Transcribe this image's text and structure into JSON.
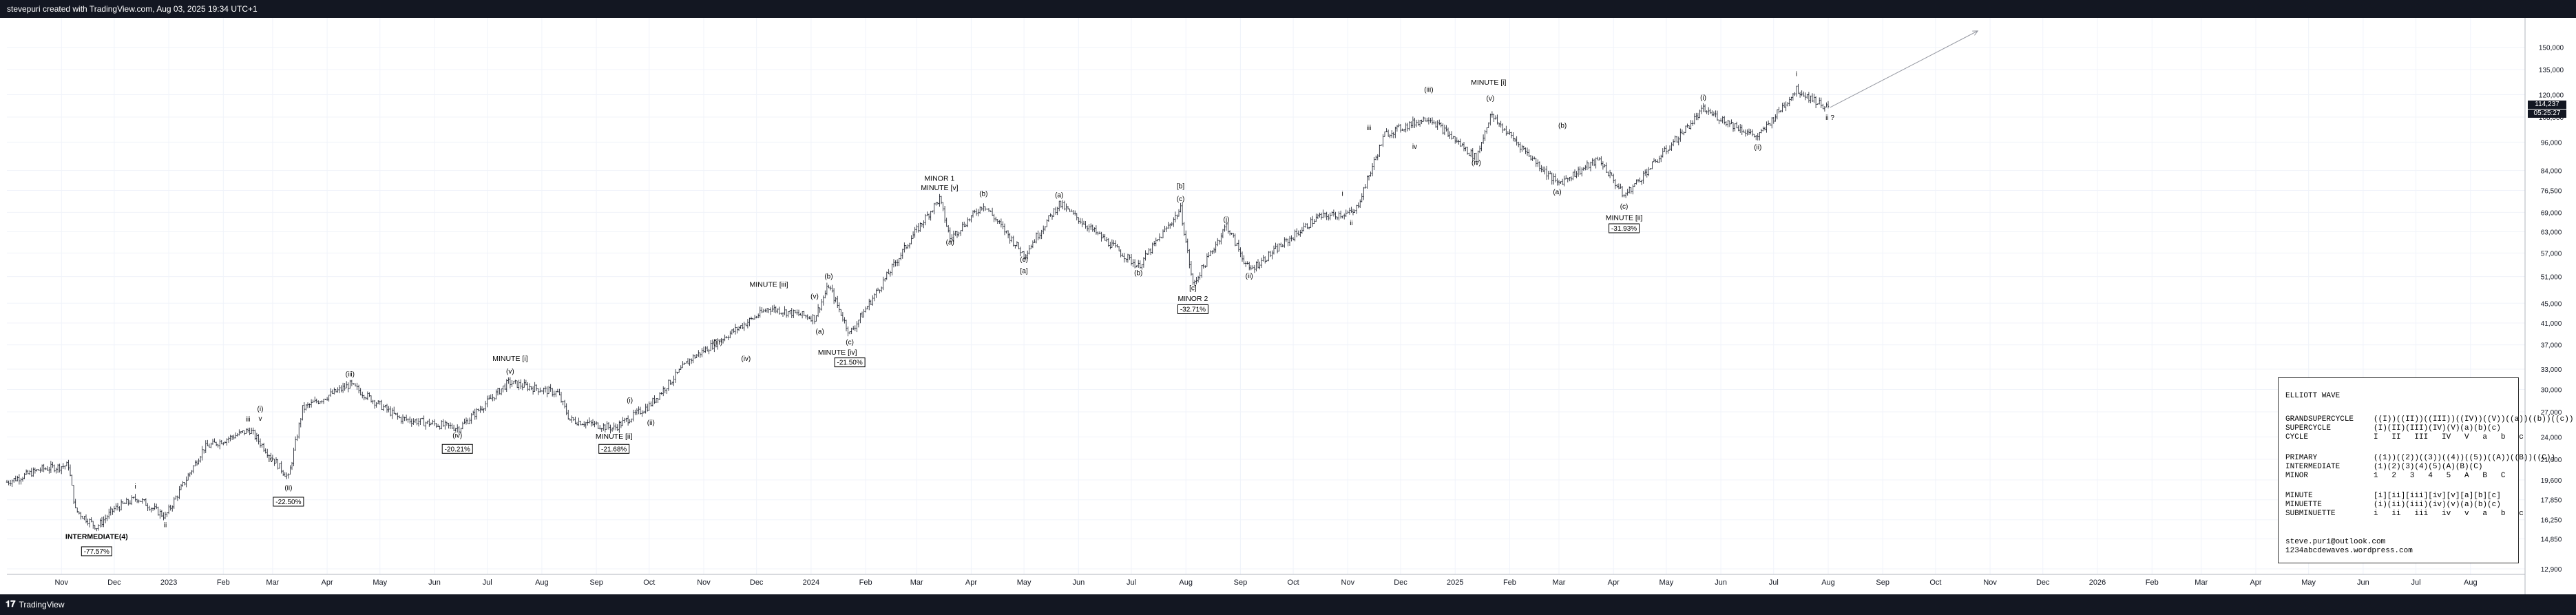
{
  "header": {
    "title": "stevepuri created with TradingView.com, Aug 03, 2025 19:34 UTC+1"
  },
  "footer": {
    "brand": "TradingView",
    "logo_icon": "tradingview-logo-icon"
  },
  "colors": {
    "candle": "#131722",
    "bar_bg": "#131722",
    "axis_text": "#131722",
    "grid": "#e0e3eb",
    "projection": "#9598a1"
  },
  "chart_data": {
    "type": "candlestick",
    "title": "",
    "y_scale": "log",
    "ylim": [
      12900,
      170000
    ],
    "xlim": [
      "2022-10-01",
      "2026-09-01"
    ],
    "y_ticks": [
      12900,
      14850,
      16250,
      17850,
      19600,
      21600,
      24000,
      27000,
      30000,
      33000,
      37000,
      41000,
      45000,
      51000,
      57000,
      63000,
      69000,
      76500,
      84000,
      96000,
      108000,
      120000,
      135000,
      150000
    ],
    "y_tick_labels": [
      "12,900",
      "14,850",
      "16,250",
      "17,850",
      "19,600",
      "21,600",
      "24,000",
      "27,000",
      "30,000",
      "33,000",
      "37,000",
      "41,000",
      "45,000",
      "51,000",
      "57,000",
      "63,000",
      "69,000",
      "76,500",
      "84,000",
      "96,000",
      "108,000",
      "120,000",
      "135,000",
      "150,000"
    ],
    "x_ticks": [
      {
        "date": "2022-11-01",
        "label": "Nov"
      },
      {
        "date": "2022-12-01",
        "label": "Dec"
      },
      {
        "date": "2023-01-01",
        "label": "2023"
      },
      {
        "date": "2023-02-01",
        "label": "Feb"
      },
      {
        "date": "2023-03-01",
        "label": "Mar"
      },
      {
        "date": "2023-04-01",
        "label": "Apr"
      },
      {
        "date": "2023-05-01",
        "label": "May"
      },
      {
        "date": "2023-06-01",
        "label": "Jun"
      },
      {
        "date": "2023-07-01",
        "label": "Jul"
      },
      {
        "date": "2023-08-01",
        "label": "Aug"
      },
      {
        "date": "2023-09-01",
        "label": "Sep"
      },
      {
        "date": "2023-10-01",
        "label": "Oct"
      },
      {
        "date": "2023-11-01",
        "label": "Nov"
      },
      {
        "date": "2023-12-01",
        "label": "Dec"
      },
      {
        "date": "2024-01-01",
        "label": "2024"
      },
      {
        "date": "2024-02-01",
        "label": "Feb"
      },
      {
        "date": "2024-03-01",
        "label": "Mar"
      },
      {
        "date": "2024-04-01",
        "label": "Apr"
      },
      {
        "date": "2024-05-01",
        "label": "May"
      },
      {
        "date": "2024-06-01",
        "label": "Jun"
      },
      {
        "date": "2024-07-01",
        "label": "Jul"
      },
      {
        "date": "2024-08-01",
        "label": "Aug"
      },
      {
        "date": "2024-09-01",
        "label": "Sep"
      },
      {
        "date": "2024-10-01",
        "label": "Oct"
      },
      {
        "date": "2024-11-01",
        "label": "Nov"
      },
      {
        "date": "2024-12-01",
        "label": "Dec"
      },
      {
        "date": "2025-01-01",
        "label": "2025"
      },
      {
        "date": "2025-02-01",
        "label": "Feb"
      },
      {
        "date": "2025-03-01",
        "label": "Mar"
      },
      {
        "date": "2025-04-01",
        "label": "Apr"
      },
      {
        "date": "2025-05-01",
        "label": "May"
      },
      {
        "date": "2025-06-01",
        "label": "Jun"
      },
      {
        "date": "2025-07-01",
        "label": "Jul"
      },
      {
        "date": "2025-08-01",
        "label": "Aug"
      },
      {
        "date": "2025-09-01",
        "label": "Sep"
      },
      {
        "date": "2025-10-01",
        "label": "Oct"
      },
      {
        "date": "2025-11-01",
        "label": "Nov"
      },
      {
        "date": "2025-12-01",
        "label": "Dec"
      },
      {
        "date": "2026-01-01",
        "label": "2026"
      },
      {
        "date": "2026-02-01",
        "label": "Feb"
      },
      {
        "date": "2026-03-01",
        "label": "Mar"
      },
      {
        "date": "2026-04-01",
        "label": "Apr"
      },
      {
        "date": "2026-05-01",
        "label": "May"
      },
      {
        "date": "2026-06-01",
        "label": "Jun"
      },
      {
        "date": "2026-07-01",
        "label": "Jul"
      },
      {
        "date": "2026-08-01",
        "label": "Aug"
      }
    ],
    "price_path": [
      [
        "2022-10-01",
        19400
      ],
      [
        "2022-10-20",
        20600
      ],
      [
        "2022-11-05",
        21000
      ],
      [
        "2022-11-09",
        17000
      ],
      [
        "2022-11-21",
        15700
      ],
      [
        "2022-12-01",
        17100
      ],
      [
        "2022-12-14",
        18000
      ],
      [
        "2022-12-30",
        16500
      ],
      [
        "2023-01-21",
        22800
      ],
      [
        "2023-02-16",
        24800
      ],
      [
        "2023-03-10",
        19800
      ],
      [
        "2023-03-18",
        27400
      ],
      [
        "2023-04-14",
        30700
      ],
      [
        "2023-05-12",
        26200
      ],
      [
        "2023-06-15",
        25000
      ],
      [
        "2023-07-13",
        31000
      ],
      [
        "2023-08-10",
        29500
      ],
      [
        "2023-08-17",
        26000
      ],
      [
        "2023-09-11",
        25000
      ],
      [
        "2023-10-01",
        27800
      ],
      [
        "2023-10-24",
        34500
      ],
      [
        "2023-12-08",
        44000
      ],
      [
        "2024-01-03",
        42000
      ],
      [
        "2024-01-11",
        48900
      ],
      [
        "2024-01-23",
        39000
      ],
      [
        "2024-02-28",
        62000
      ],
      [
        "2024-03-14",
        73600
      ],
      [
        "2024-03-20",
        61000
      ],
      [
        "2024-04-08",
        71700
      ],
      [
        "2024-05-01",
        56500
      ],
      [
        "2024-05-21",
        71900
      ],
      [
        "2024-07-05",
        53500
      ],
      [
        "2024-07-29",
        70000
      ],
      [
        "2024-08-05",
        49000
      ],
      [
        "2024-08-24",
        65000
      ],
      [
        "2024-09-06",
        52500
      ],
      [
        "2024-10-15",
        67500
      ],
      [
        "2024-11-05",
        69000
      ],
      [
        "2024-11-22",
        99600
      ],
      [
        "2024-12-17",
        108000
      ],
      [
        "2025-01-13",
        89000
      ],
      [
        "2025-01-21",
        109000
      ],
      [
        "2025-02-28",
        79000
      ],
      [
        "2025-03-24",
        88500
      ],
      [
        "2025-04-07",
        74500
      ],
      [
        "2025-05-22",
        111900
      ],
      [
        "2025-06-22",
        98200
      ],
      [
        "2025-07-14",
        123000
      ],
      [
        "2025-08-02",
        112000
      ]
    ],
    "last_price": "114,237",
    "countdown": "05:25:27",
    "projection": {
      "from": [
        "2025-08-02",
        113000
      ],
      "to": [
        "2025-10-25",
        162000
      ]
    },
    "labels": [
      {
        "text": "i",
        "date": "2022-12-13",
        "price": 18800
      },
      {
        "text": "ii",
        "date": "2022-12-30",
        "price": 15700
      },
      {
        "text": "iii",
        "date": "2023-02-15",
        "price": 25800
      },
      {
        "text": "iv",
        "date": "2023-02-28",
        "price": 21300
      },
      {
        "text": "(i)",
        "date": "2023-02-22",
        "price": 27100
      },
      {
        "text": "v",
        "date": "2023-02-22",
        "price": 25900
      },
      {
        "text": "(ii)",
        "date": "2023-03-10",
        "price": 18700
      },
      {
        "text": "(iii)",
        "date": "2023-04-14",
        "price": 31900
      },
      {
        "text": "(iv)",
        "date": "2023-06-14",
        "price": 23900
      },
      {
        "text": "MINUTE [i]",
        "date": "2023-07-14",
        "price": 34300
      },
      {
        "text": "(v)",
        "date": "2023-07-14",
        "price": 32300
      },
      {
        "text": "(i)",
        "date": "2023-09-20",
        "price": 28200
      },
      {
        "text": "(ii)",
        "date": "2023-10-02",
        "price": 25400
      },
      {
        "text": "MINUTE [ii]",
        "date": "2023-09-11",
        "price": 23800
      },
      {
        "text": "(iii)",
        "date": "2023-11-09",
        "price": 37000
      },
      {
        "text": "(iv)",
        "date": "2023-11-25",
        "price": 34300
      },
      {
        "text": "MINUTE [iii]",
        "date": "2023-12-08",
        "price": 48600
      },
      {
        "text": "(v)",
        "date": "2024-01-03",
        "price": 46000
      },
      {
        "text": "(a)",
        "date": "2024-01-06",
        "price": 39000
      },
      {
        "text": "(b)",
        "date": "2024-01-11",
        "price": 50500
      },
      {
        "text": "(c)",
        "date": "2024-01-23",
        "price": 37100
      },
      {
        "text": "MINUTE [iv]",
        "date": "2024-01-16",
        "price": 35300
      },
      {
        "text": "MINOR 1",
        "date": "2024-03-14",
        "price": 80000
      },
      {
        "text": "MINUTE [v]",
        "date": "2024-03-14",
        "price": 76600
      },
      {
        "text": "(a)",
        "date": "2024-03-20",
        "price": 59300
      },
      {
        "text": "(b)",
        "date": "2024-04-08",
        "price": 74500
      },
      {
        "text": "(c)",
        "date": "2024-05-01",
        "price": 54700
      },
      {
        "text": "[a]",
        "date": "2024-05-01",
        "price": 51900
      },
      {
        "text": "(a)",
        "date": "2024-05-21",
        "price": 74100
      },
      {
        "text": "(b)",
        "date": "2024-07-05",
        "price": 51400
      },
      {
        "text": "[b]",
        "date": "2024-07-29",
        "price": 77300
      },
      {
        "text": "(c)",
        "date": "2024-07-29",
        "price": 72700
      },
      {
        "text": "[c]",
        "date": "2024-08-05",
        "price": 47800
      },
      {
        "text": "MINOR 2",
        "date": "2024-08-05",
        "price": 45500
      },
      {
        "text": "(i)",
        "date": "2024-08-24",
        "price": 66000
      },
      {
        "text": "(ii)",
        "date": "2024-09-06",
        "price": 50600
      },
      {
        "text": "i",
        "date": "2024-10-29",
        "price": 74500
      },
      {
        "text": "ii",
        "date": "2024-11-03",
        "price": 65000
      },
      {
        "text": "iii",
        "date": "2024-11-13",
        "price": 101500
      },
      {
        "text": "iv",
        "date": "2024-12-09",
        "price": 93100
      },
      {
        "text": "(iii)",
        "date": "2024-12-17",
        "price": 121500
      },
      {
        "text": "MINUTE [i]",
        "date": "2025-01-20",
        "price": 125800
      },
      {
        "text": "(v)",
        "date": "2025-01-21",
        "price": 116700
      },
      {
        "text": "(iv)",
        "date": "2025-01-13",
        "price": 86300
      },
      {
        "text": "(b)",
        "date": "2025-03-03",
        "price": 102700
      },
      {
        "text": "(a)",
        "date": "2025-02-28",
        "price": 75100
      },
      {
        "text": "(c)",
        "date": "2025-04-07",
        "price": 70200
      },
      {
        "text": "MINUTE [ii]",
        "date": "2025-04-07",
        "price": 66600
      },
      {
        "text": "(i)",
        "date": "2025-05-22",
        "price": 117200
      },
      {
        "text": "(ii)",
        "date": "2025-06-22",
        "price": 92700
      },
      {
        "text": "i",
        "date": "2025-07-14",
        "price": 131000
      },
      {
        "text": "ii ?",
        "date": "2025-08-02",
        "price": 106600
      },
      {
        "text": "INTERMEDIATE(4)",
        "date": "2022-11-21",
        "price": 14850
      }
    ],
    "boxed_labels": [
      {
        "text": "-77.57%",
        "date": "2022-11-21",
        "price": 13900
      },
      {
        "text": "-22.50%",
        "date": "2023-03-10",
        "price": 17550
      },
      {
        "text": "-20.21%",
        "date": "2023-06-14",
        "price": 22500
      },
      {
        "text": "-21.68%",
        "date": "2023-09-11",
        "price": 22500
      },
      {
        "text": "-21.50%",
        "date": "2024-01-23",
        "price": 33800
      },
      {
        "text": "-32.71%",
        "date": "2024-08-05",
        "price": 43400
      },
      {
        "text": "-31.93%",
        "date": "2025-04-07",
        "price": 63500
      }
    ]
  },
  "legend": {
    "title": "ELLIOTT WAVE",
    "groups": [
      [
        {
          "degree": "GRANDSUPERCYCLE",
          "symbols": "((I))((II))((III))((IV))((V))((a))((b))((c))"
        },
        {
          "degree": "SUPERCYCLE",
          "symbols": "(I)(II)(III)(IV)(V)(a)(b)(c)"
        },
        {
          "degree": "CYCLE",
          "symbols": "I   II   III   IV   V   a   b   c"
        }
      ],
      [
        {
          "degree": "PRIMARY",
          "symbols": "((1))((2))((3))((4))((5))((A))((B))((C))"
        },
        {
          "degree": "INTERMEDIATE",
          "symbols": "(1)(2)(3)(4)(5)(A)(B)(C)"
        },
        {
          "degree": "MINOR",
          "symbols": "1   2   3   4   5   A   B   C"
        }
      ],
      [
        {
          "degree": "MINUTE",
          "symbols": "[i][ii][iii][iv][v][a][b][c]"
        },
        {
          "degree": "MINUETTE",
          "symbols": "(i)(ii)(iii)(iv)(v)(a)(b)(c)"
        },
        {
          "degree": "SUBMINUETTE",
          "symbols": "i   ii   iii   iv   v   a   b   c"
        }
      ]
    ],
    "email": "steve.puri@outlook.com",
    "website": "1234abcdewaves.wordpress.com"
  }
}
